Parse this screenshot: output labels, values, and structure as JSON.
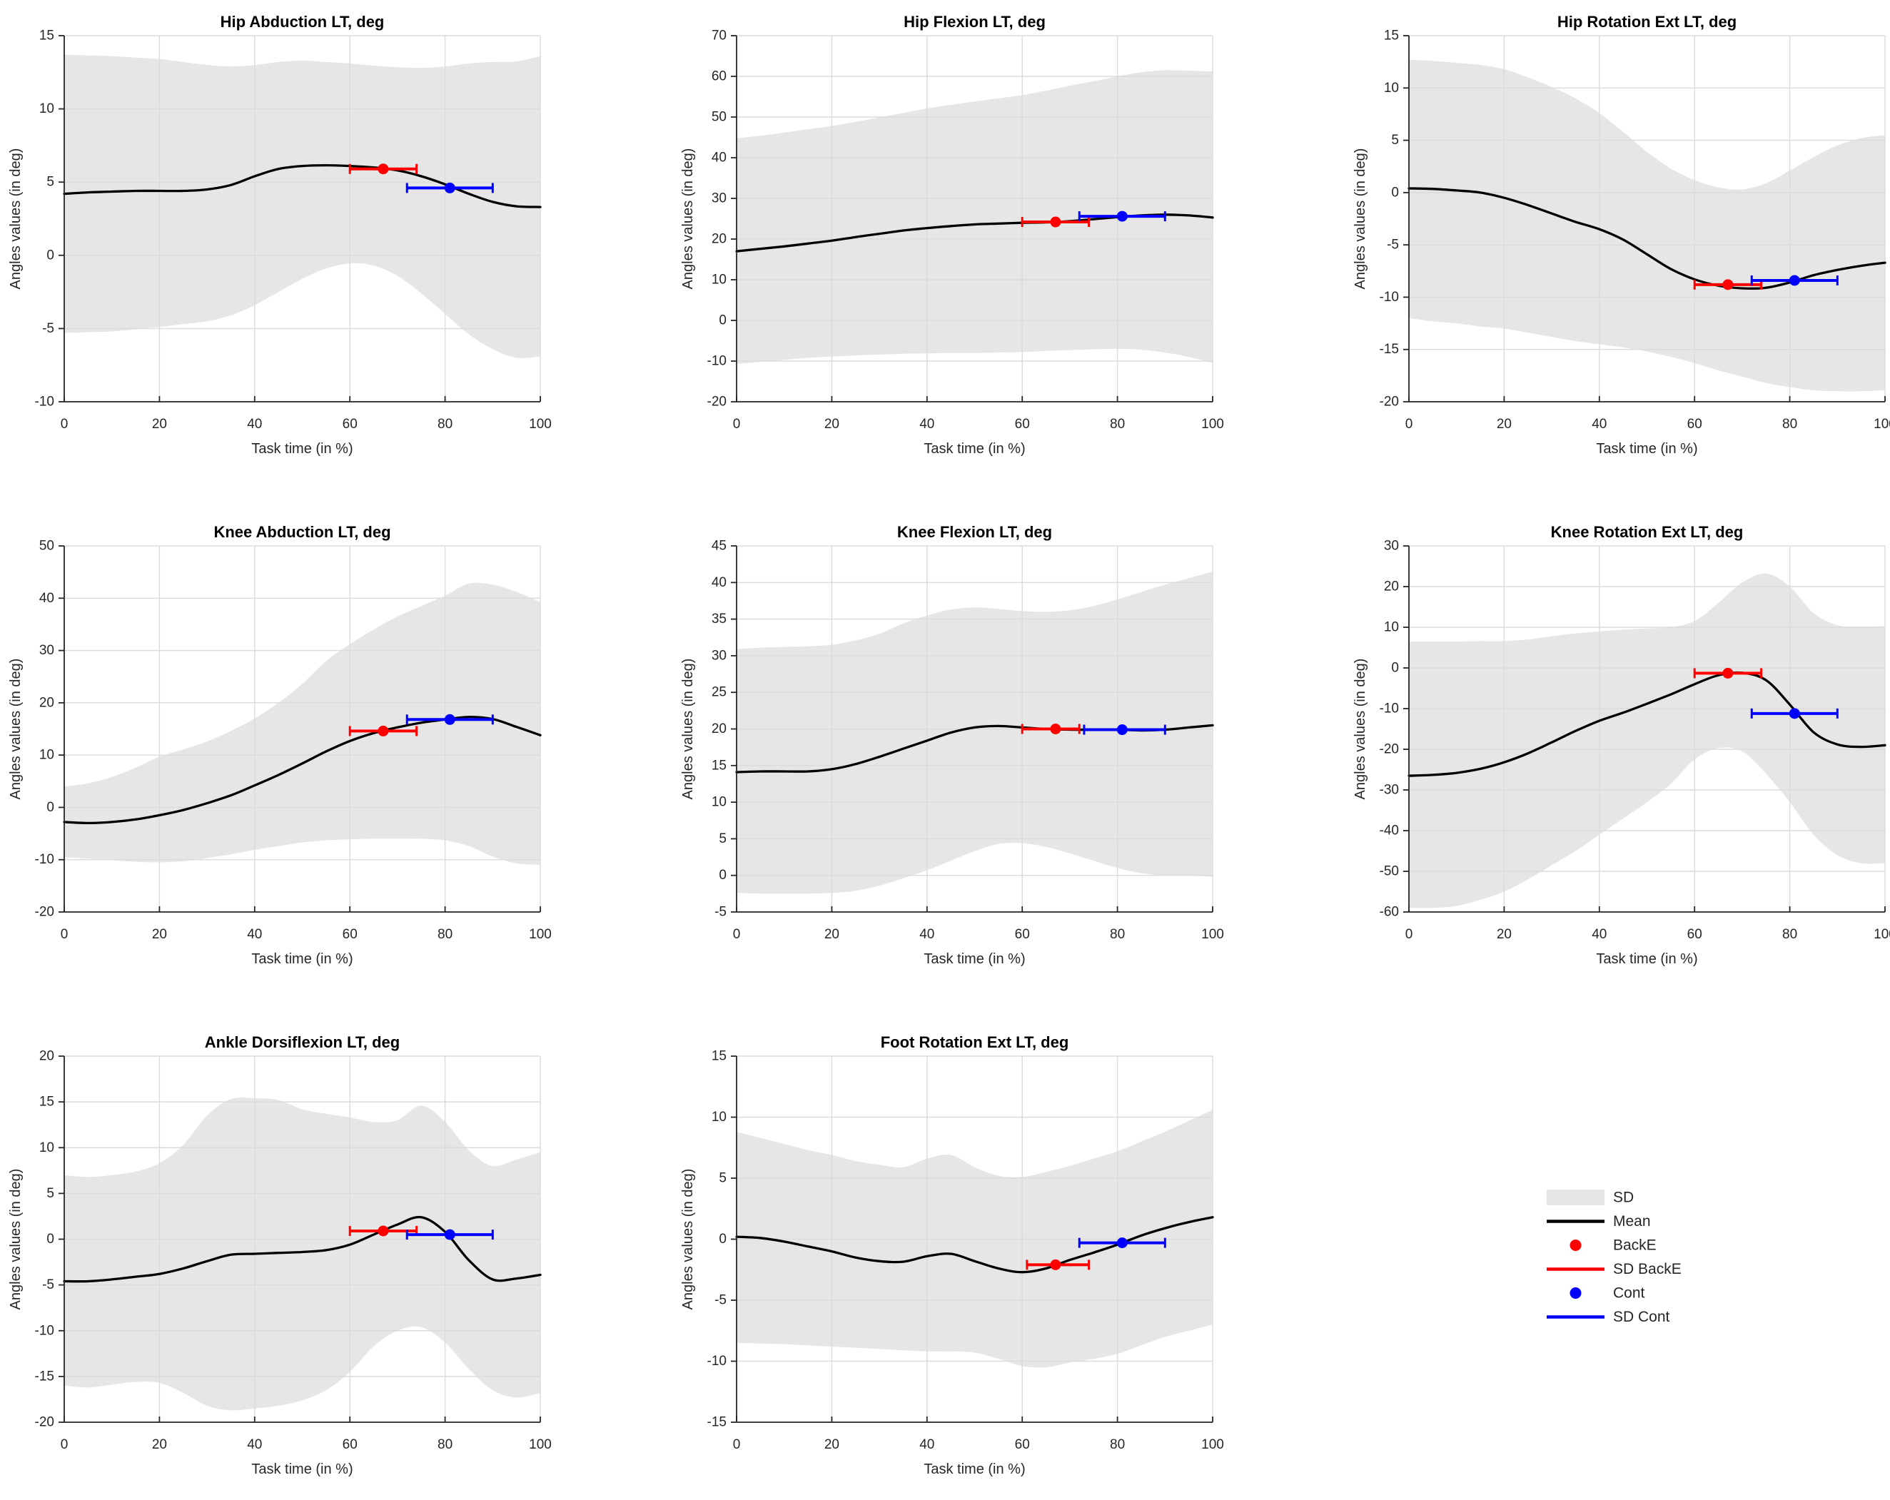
{
  "figure": {
    "xlabel": "Task time (in %)",
    "ylabel": "Angles values (in deg)",
    "xticks": [
      0,
      20,
      40,
      60,
      80,
      100
    ],
    "xlim": [
      0,
      100
    ]
  },
  "colors": {
    "sd_band": "#e6e6e6",
    "mean": "#000000",
    "backe": "#ff0000",
    "cont": "#0000ff",
    "grid": "#dbdbdb",
    "axis": "#262626",
    "tick_text": "#262626",
    "title_text": "#000000"
  },
  "legend": {
    "items": [
      {
        "label": "SD",
        "type": "patch",
        "color": "#e6e6e6"
      },
      {
        "label": "Mean",
        "type": "line",
        "color": "#000000"
      },
      {
        "label": "BackE",
        "type": "dot",
        "color": "#ff0000"
      },
      {
        "label": "SD BackE",
        "type": "line",
        "color": "#ff0000"
      },
      {
        "label": "Cont",
        "type": "dot",
        "color": "#0000ff"
      },
      {
        "label": "SD Cont",
        "type": "line",
        "color": "#0000ff"
      }
    ]
  },
  "chart_data": [
    {
      "type": "line",
      "title": "Hip Abduction LT, deg",
      "xlabel": "Task time (in %)",
      "ylabel": "Angles values (in deg)",
      "xlim": [
        0,
        100
      ],
      "ylim": [
        -10,
        15
      ],
      "yticks": [
        -10,
        -5,
        0,
        5,
        10,
        15
      ],
      "x": [
        0,
        5,
        10,
        15,
        20,
        25,
        30,
        35,
        40,
        45,
        50,
        55,
        60,
        65,
        70,
        75,
        80,
        85,
        90,
        95,
        100
      ],
      "mean": [
        4.2,
        4.3,
        4.35,
        4.4,
        4.4,
        4.4,
        4.5,
        4.8,
        5.4,
        5.9,
        6.1,
        6.15,
        6.1,
        6.0,
        5.8,
        5.4,
        4.85,
        4.2,
        3.65,
        3.35,
        3.3
      ],
      "sd_upper": [
        13.7,
        13.65,
        13.6,
        13.5,
        13.4,
        13.2,
        13.0,
        12.9,
        13.0,
        13.2,
        13.3,
        13.2,
        13.1,
        12.95,
        12.85,
        12.8,
        12.9,
        13.1,
        13.2,
        13.25,
        13.6
      ],
      "sd_lower": [
        -5.3,
        -5.25,
        -5.2,
        -5.05,
        -4.9,
        -4.7,
        -4.5,
        -4.1,
        -3.4,
        -2.5,
        -1.6,
        -0.9,
        -0.55,
        -0.7,
        -1.4,
        -2.6,
        -4.0,
        -5.4,
        -6.4,
        -7.0,
        -6.9
      ],
      "backe": {
        "x": 67,
        "y": 5.9,
        "x_sd": [
          60,
          74
        ]
      },
      "cont": {
        "x": 81,
        "y": 4.6,
        "x_sd": [
          72,
          90
        ]
      }
    },
    {
      "type": "line",
      "title": "Hip Flexion LT, deg",
      "xlabel": "Task time (in %)",
      "ylabel": "Angles values (in deg)",
      "xlim": [
        0,
        100
      ],
      "ylim": [
        -20,
        70
      ],
      "yticks": [
        -20,
        -10,
        0,
        10,
        20,
        30,
        40,
        50,
        60,
        70
      ],
      "x": [
        0,
        5,
        10,
        15,
        20,
        25,
        30,
        35,
        40,
        45,
        50,
        55,
        60,
        65,
        70,
        75,
        80,
        85,
        90,
        95,
        100
      ],
      "mean": [
        17.0,
        17.6,
        18.2,
        18.9,
        19.6,
        20.5,
        21.3,
        22.1,
        22.7,
        23.2,
        23.6,
        23.8,
        24.0,
        24.1,
        24.4,
        24.9,
        25.4,
        25.8,
        26.0,
        25.8,
        25.3
      ],
      "sd_upper": [
        44.8,
        45.4,
        46.2,
        47.0,
        47.8,
        48.8,
        49.9,
        51.0,
        52.1,
        53.0,
        53.8,
        54.6,
        55.4,
        56.5,
        57.7,
        58.8,
        60.0,
        61.0,
        61.5,
        61.4,
        61.2
      ],
      "sd_lower": [
        -10.7,
        -10.2,
        -9.7,
        -9.2,
        -8.9,
        -8.6,
        -8.4,
        -8.2,
        -8.1,
        -8.0,
        -8.0,
        -7.9,
        -7.8,
        -7.5,
        -7.3,
        -7.1,
        -7.0,
        -7.2,
        -7.9,
        -9.0,
        -10.5
      ],
      "backe": {
        "x": 67,
        "y": 24.2,
        "x_sd": [
          60,
          74
        ]
      },
      "cont": {
        "x": 81,
        "y": 25.6,
        "x_sd": [
          72,
          90
        ]
      }
    },
    {
      "type": "line",
      "title": "Hip Rotation Ext LT, deg",
      "xlabel": "Task time (in %)",
      "ylabel": "Angles values (in deg)",
      "xlim": [
        0,
        100
      ],
      "ylim": [
        -20,
        15
      ],
      "yticks": [
        -20,
        -15,
        -10,
        -5,
        0,
        5,
        10,
        15
      ],
      "x": [
        0,
        5,
        10,
        15,
        20,
        25,
        30,
        35,
        40,
        45,
        50,
        55,
        60,
        65,
        70,
        75,
        80,
        85,
        90,
        95,
        100
      ],
      "mean": [
        0.4,
        0.35,
        0.2,
        0.0,
        -0.5,
        -1.2,
        -2.0,
        -2.8,
        -3.5,
        -4.5,
        -5.9,
        -7.3,
        -8.3,
        -8.9,
        -9.15,
        -9.1,
        -8.6,
        -7.9,
        -7.4,
        -7.0,
        -6.7
      ],
      "sd_upper": [
        12.7,
        12.6,
        12.4,
        12.2,
        11.8,
        11.0,
        10.1,
        9.0,
        7.6,
        5.8,
        3.9,
        2.3,
        1.2,
        0.5,
        0.3,
        0.9,
        2.1,
        3.4,
        4.5,
        5.2,
        5.5
      ],
      "sd_lower": [
        -12.0,
        -12.3,
        -12.5,
        -12.8,
        -13.0,
        -13.4,
        -13.8,
        -14.2,
        -14.5,
        -14.8,
        -15.2,
        -15.7,
        -16.3,
        -17.0,
        -17.6,
        -18.2,
        -18.6,
        -18.9,
        -19.0,
        -19.0,
        -18.9
      ],
      "backe": {
        "x": 67,
        "y": -8.8,
        "x_sd": [
          60,
          74
        ]
      },
      "cont": {
        "x": 81,
        "y": -8.4,
        "x_sd": [
          72,
          90
        ]
      }
    },
    {
      "type": "line",
      "title": "Knee Abduction LT, deg",
      "xlabel": "Task time (in %)",
      "ylabel": "Angles values (in deg)",
      "xlim": [
        0,
        100
      ],
      "ylim": [
        -20,
        50
      ],
      "yticks": [
        -20,
        -10,
        0,
        10,
        20,
        30,
        40,
        50
      ],
      "x": [
        0,
        5,
        10,
        15,
        20,
        25,
        30,
        35,
        40,
        45,
        50,
        55,
        60,
        65,
        70,
        75,
        80,
        85,
        90,
        95,
        100
      ],
      "mean": [
        -2.8,
        -3.0,
        -2.8,
        -2.3,
        -1.5,
        -0.5,
        0.8,
        2.3,
        4.2,
        6.2,
        8.4,
        10.7,
        12.7,
        14.2,
        15.3,
        16.2,
        16.8,
        17.3,
        16.9,
        15.4,
        13.8
      ],
      "sd_upper": [
        4.0,
        4.6,
        5.8,
        7.6,
        9.7,
        11.1,
        12.6,
        14.6,
        17.0,
        20.0,
        23.6,
        28.0,
        31.2,
        34.0,
        36.5,
        38.5,
        40.5,
        42.8,
        42.6,
        41.2,
        39.3
      ],
      "sd_lower": [
        -9.5,
        -9.8,
        -10.1,
        -10.4,
        -10.5,
        -10.3,
        -9.7,
        -9.0,
        -8.1,
        -7.4,
        -6.7,
        -6.3,
        -6.1,
        -6.0,
        -6.0,
        -6.0,
        -6.3,
        -7.4,
        -9.4,
        -10.7,
        -11.0
      ],
      "backe": {
        "x": 67,
        "y": 14.6,
        "x_sd": [
          60,
          74
        ]
      },
      "cont": {
        "x": 81,
        "y": 16.8,
        "x_sd": [
          72,
          90
        ]
      }
    },
    {
      "type": "line",
      "title": "Knee Flexion LT, deg",
      "xlabel": "Task time (in %)",
      "ylabel": "Angles values (in deg)",
      "xlim": [
        0,
        100
      ],
      "ylim": [
        -5,
        45
      ],
      "yticks": [
        -5,
        0,
        5,
        10,
        15,
        20,
        25,
        30,
        35,
        40,
        45
      ],
      "x": [
        0,
        5,
        10,
        15,
        20,
        25,
        30,
        35,
        40,
        45,
        50,
        55,
        60,
        65,
        70,
        75,
        80,
        85,
        90,
        95,
        100
      ],
      "mean": [
        14.1,
        14.2,
        14.2,
        14.2,
        14.5,
        15.2,
        16.2,
        17.3,
        18.4,
        19.5,
        20.2,
        20.4,
        20.2,
        20.0,
        19.9,
        19.9,
        19.9,
        19.8,
        19.9,
        20.2,
        20.5
      ],
      "sd_upper": [
        30.9,
        31.1,
        31.2,
        31.3,
        31.5,
        32.1,
        33.0,
        34.4,
        35.5,
        36.3,
        36.6,
        36.4,
        36.1,
        36.0,
        36.2,
        36.8,
        37.7,
        38.7,
        39.7,
        40.6,
        41.5
      ],
      "sd_lower": [
        -2.4,
        -2.5,
        -2.5,
        -2.5,
        -2.4,
        -2.1,
        -1.4,
        -0.4,
        0.7,
        2.0,
        3.3,
        4.3,
        4.4,
        3.9,
        3.0,
        2.0,
        1.0,
        0.3,
        0.0,
        0.0,
        -0.2
      ],
      "backe": {
        "x": 67,
        "y": 20.0,
        "x_sd": [
          60,
          72
        ]
      },
      "cont": {
        "x": 81,
        "y": 19.9,
        "x_sd": [
          73,
          90
        ]
      }
    },
    {
      "type": "line",
      "title": "Knee Rotation Ext LT, deg",
      "xlabel": "Task time (in %)",
      "ylabel": "Angles values (in deg)",
      "xlim": [
        0,
        100
      ],
      "ylim": [
        -60,
        30
      ],
      "yticks": [
        -60,
        -50,
        -40,
        -30,
        -20,
        -10,
        0,
        10,
        20,
        30
      ],
      "x": [
        0,
        5,
        10,
        15,
        20,
        25,
        30,
        35,
        40,
        45,
        50,
        55,
        60,
        65,
        70,
        75,
        80,
        85,
        90,
        95,
        100
      ],
      "mean": [
        -26.5,
        -26.3,
        -25.8,
        -24.8,
        -23.2,
        -21.0,
        -18.3,
        -15.5,
        -13.0,
        -11.0,
        -8.8,
        -6.5,
        -4.0,
        -1.8,
        -1.2,
        -3.0,
        -9.0,
        -15.8,
        -18.8,
        -19.4,
        -19.0
      ],
      "sd_upper": [
        6.5,
        6.5,
        6.5,
        6.6,
        6.6,
        7.0,
        7.8,
        8.5,
        9.0,
        9.4,
        9.7,
        10.0,
        11.5,
        16.0,
        21.0,
        23.2,
        20.0,
        13.5,
        10.5,
        10.0,
        10.3
      ],
      "sd_lower": [
        -59.0,
        -59.0,
        -58.5,
        -57.0,
        -55.0,
        -52.0,
        -48.5,
        -45.0,
        -41.0,
        -37.0,
        -33.0,
        -28.5,
        -22.5,
        -19.7,
        -20.5,
        -26.0,
        -33.0,
        -41.0,
        -46.0,
        -48.0,
        -48.0
      ],
      "backe": {
        "x": 67,
        "y": -1.3,
        "x_sd": [
          60,
          74
        ]
      },
      "cont": {
        "x": 81,
        "y": -11.2,
        "x_sd": [
          72,
          90
        ]
      }
    },
    {
      "type": "line",
      "title": "Ankle Dorsiflexion LT, deg",
      "xlabel": "Task time (in %)",
      "ylabel": "Angles values (in deg)",
      "xlim": [
        0,
        100
      ],
      "ylim": [
        -20,
        20
      ],
      "yticks": [
        -20,
        -15,
        -10,
        -5,
        0,
        5,
        10,
        15,
        20
      ],
      "x": [
        0,
        5,
        10,
        15,
        20,
        25,
        30,
        35,
        40,
        45,
        50,
        55,
        60,
        65,
        70,
        75,
        80,
        85,
        90,
        95,
        100
      ],
      "mean": [
        -4.6,
        -4.6,
        -4.4,
        -4.1,
        -3.8,
        -3.2,
        -2.4,
        -1.7,
        -1.6,
        -1.5,
        -1.4,
        -1.2,
        -0.6,
        0.5,
        1.6,
        2.4,
        0.8,
        -2.3,
        -4.4,
        -4.3,
        -3.9
      ],
      "sd_upper": [
        7.0,
        6.8,
        7.0,
        7.4,
        8.3,
        10.3,
        13.5,
        15.3,
        15.4,
        15.2,
        14.2,
        13.7,
        13.3,
        12.8,
        13.0,
        14.6,
        12.8,
        9.7,
        8.0,
        8.7,
        9.5
      ],
      "sd_lower": [
        -16.0,
        -16.2,
        -15.9,
        -15.6,
        -15.7,
        -16.8,
        -18.2,
        -18.7,
        -18.5,
        -18.2,
        -17.6,
        -16.5,
        -14.5,
        -11.7,
        -10.0,
        -9.6,
        -11.3,
        -14.2,
        -16.5,
        -17.3,
        -16.8
      ],
      "backe": {
        "x": 67,
        "y": 0.9,
        "x_sd": [
          60,
          74
        ]
      },
      "cont": {
        "x": 81,
        "y": 0.5,
        "x_sd": [
          72,
          90
        ]
      }
    },
    {
      "type": "line",
      "title": "Foot Rotation Ext LT, deg",
      "xlabel": "Task time (in %)",
      "ylabel": "Angles values (in deg)",
      "xlim": [
        0,
        100
      ],
      "ylim": [
        -15,
        15
      ],
      "yticks": [
        -15,
        -10,
        -5,
        0,
        5,
        10,
        15
      ],
      "x": [
        0,
        5,
        10,
        15,
        20,
        25,
        30,
        35,
        40,
        45,
        50,
        55,
        60,
        65,
        70,
        75,
        80,
        85,
        90,
        95,
        100
      ],
      "mean": [
        0.2,
        0.1,
        -0.2,
        -0.6,
        -1.0,
        -1.5,
        -1.8,
        -1.85,
        -1.4,
        -1.2,
        -1.8,
        -2.4,
        -2.7,
        -2.4,
        -1.7,
        -1.1,
        -0.45,
        0.3,
        0.9,
        1.4,
        1.8
      ],
      "sd_upper": [
        8.8,
        8.3,
        7.8,
        7.3,
        6.9,
        6.4,
        6.1,
        5.9,
        6.6,
        6.9,
        5.9,
        5.2,
        5.1,
        5.5,
        6.0,
        6.6,
        7.2,
        8.0,
        8.8,
        9.7,
        10.6
      ],
      "sd_lower": [
        -8.5,
        -8.55,
        -8.6,
        -8.7,
        -8.8,
        -8.9,
        -9.0,
        -9.1,
        -9.2,
        -9.2,
        -9.3,
        -9.8,
        -10.4,
        -10.5,
        -10.1,
        -9.8,
        -9.4,
        -8.7,
        -8.0,
        -7.5,
        -7.0
      ],
      "backe": {
        "x": 67,
        "y": -2.1,
        "x_sd": [
          61,
          74
        ]
      },
      "cont": {
        "x": 81,
        "y": -0.3,
        "x_sd": [
          72,
          90
        ]
      }
    }
  ]
}
